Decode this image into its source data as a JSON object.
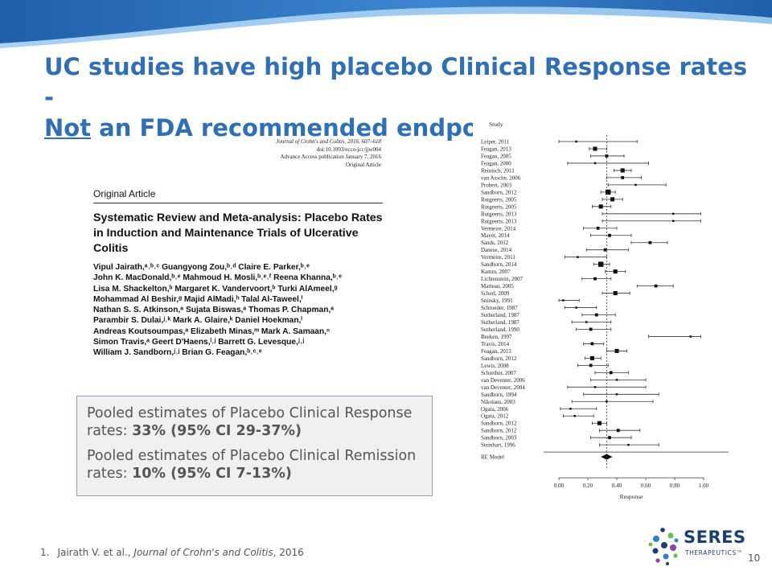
{
  "slide": {
    "title_line1": "UC studies have high placebo Clinical Response rates -",
    "title_not": "Not",
    "title_rest": " an FDA recommended endpoint",
    "page_number": "10",
    "colors": {
      "title": "#2f6fb5",
      "banner_dark": "#1f5fa8",
      "banner_light": "#4f9ee0",
      "logo": "#1d3f6f"
    }
  },
  "article": {
    "journal_line": "Journal of Crohn's and Colitis, 2016, 607–618",
    "doi": "doi:10.1093/ecco-jcc/jjw004",
    "access": "Advance Access publication January 7, 2016",
    "type_label": "Original Article",
    "section_label": "Original Article",
    "title": "Systematic Review and Meta-analysis: Placebo Rates in Induction and Maintenance Trials of Ulcerative Colitis",
    "authors": [
      "Vipul Jairath,ᵃ˒ᵇ˒ᶜ Guangyong Zou,ᵇ˒ᵈ Claire E. Parker,ᵇ˒ᵉ",
      "John K. MacDonald,ᵇ˒ᵉ Mahmoud H. Mosli,ᵇ˒ᵉ˒ᶠ Reena Khanna,ᵇ˒ᵉ",
      "Lisa M. Shackelton,ᵇ Margaret K. Vandervoort,ᵇ Turki AlAmeel,ᵍ",
      "Mohammad Al Beshir,ᵍ Majid AlMadi,ʰ Talal Al-Taweel,ⁱ",
      "Nathan S. S. Atkinson,ᵃ Sujata Biswas,ᵃ Thomas P. Chapman,ᵃ",
      "Parambir S. Dulai,ʲ˒ᵏ Mark A. Glaire,ᵏ Daniel Hoekman,ˡ",
      "Andreas Koutsoumpas,ᵃ Elizabeth Minas,ᵐ Mark A. Samaan,ⁿ",
      "Simon Travis,ᵃ Geert D'Haens,ˡ˒ʲ Barrett G. Levesque,ʲ˒ʲ",
      "William J. Sandborn,ʲ˒ʲ Brian G. Feagan,ᵇ˒ᶜ˒ᵉ"
    ]
  },
  "callout": {
    "response_prefix": "Pooled estimates of Placebo Clinical Response rates: ",
    "response_value": "33% (95% CI 29-37%)",
    "remission_prefix": "Pooled estimates of Placebo Clinical Remission rates: ",
    "remission_value": "10% (95% CI 7-13%)"
  },
  "chart_data": {
    "type": "forest",
    "column_header": "Study",
    "xlabel": "Response",
    "xlim": [
      0,
      1
    ],
    "ticks": [
      "0.00",
      "0.20",
      "0.40",
      "0.60",
      "0.80",
      "1.00"
    ],
    "dashed_reference": 0.33,
    "studies": [
      {
        "label": "Leiper, 2011",
        "est": 0.12,
        "lo": 0.0,
        "hi": 0.54,
        "w": 1
      },
      {
        "label": "Feagan, 2013",
        "est": 0.25,
        "lo": 0.21,
        "hi": 0.33,
        "w": 3
      },
      {
        "label": "Feagan, 2005",
        "est": 0.33,
        "lo": 0.22,
        "hi": 0.45,
        "w": 2
      },
      {
        "label": "Feagan, 2000",
        "est": 0.25,
        "lo": 0.06,
        "hi": 0.62,
        "w": 1
      },
      {
        "label": "Reinisch, 2011",
        "est": 0.44,
        "lo": 0.38,
        "hi": 0.5,
        "w": 3
      },
      {
        "label": "van Assche, 2006",
        "est": 0.44,
        "lo": 0.33,
        "hi": 0.57,
        "w": 2
      },
      {
        "label": "Probert, 2003",
        "est": 0.53,
        "lo": 0.34,
        "hi": 0.74,
        "w": 1
      },
      {
        "label": "Sandborn, 2012",
        "est": 0.34,
        "lo": 0.29,
        "hi": 0.39,
        "w": 4
      },
      {
        "label": "Rutgeerts, 2005",
        "est": 0.37,
        "lo": 0.3,
        "hi": 0.44,
        "w": 3
      },
      {
        "label": "Rutgeerts, 2005",
        "est": 0.29,
        "lo": 0.23,
        "hi": 0.36,
        "w": 3
      },
      {
        "label": "Rutgeerts, 2013",
        "est": 0.79,
        "lo": 0.3,
        "hi": 0.98,
        "w": 1
      },
      {
        "label": "Rutgeerts, 2013",
        "est": 0.79,
        "lo": 0.3,
        "hi": 0.98,
        "w": 1
      },
      {
        "label": "Vermeire, 2014",
        "est": 0.27,
        "lo": 0.17,
        "hi": 0.4,
        "w": 2
      },
      {
        "label": "Mayer, 2014",
        "est": 0.35,
        "lo": 0.22,
        "hi": 0.5,
        "w": 2
      },
      {
        "label": "Sands, 2012",
        "est": 0.63,
        "lo": 0.5,
        "hi": 0.75,
        "w": 2
      },
      {
        "label": "Danese, 2014",
        "est": 0.32,
        "lo": 0.19,
        "hi": 0.48,
        "w": 2
      },
      {
        "label": "Vermeire, 2011",
        "est": 0.13,
        "lo": 0.04,
        "hi": 0.33,
        "w": 1
      },
      {
        "label": "Sandborn, 2014",
        "est": 0.29,
        "lo": 0.24,
        "hi": 0.35,
        "w": 4
      },
      {
        "label": "Kamm, 2007",
        "est": 0.39,
        "lo": 0.32,
        "hi": 0.46,
        "w": 3
      },
      {
        "label": "Lichtenstein, 2007",
        "est": 0.25,
        "lo": 0.16,
        "hi": 0.36,
        "w": 2
      },
      {
        "label": "Marteau, 2005",
        "est": 0.67,
        "lo": 0.54,
        "hi": 0.79,
        "w": 2
      },
      {
        "label": "Scherl, 2009",
        "est": 0.39,
        "lo": 0.3,
        "hi": 0.49,
        "w": 3
      },
      {
        "label": "Sninsky, 1991",
        "est": 0.03,
        "lo": 0.0,
        "hi": 0.14,
        "w": 1
      },
      {
        "label": "Schroeder, 1987",
        "est": 0.12,
        "lo": 0.04,
        "hi": 0.26,
        "w": 1
      },
      {
        "label": "Sutherland, 1987",
        "est": 0.26,
        "lo": 0.16,
        "hi": 0.39,
        "w": 2
      },
      {
        "label": "Sutherland, 1987",
        "est": 0.19,
        "lo": 0.09,
        "hi": 0.36,
        "w": 1
      },
      {
        "label": "Sutherland, 1990",
        "est": 0.22,
        "lo": 0.12,
        "hi": 0.36,
        "w": 2
      },
      {
        "label": "Beeken, 1997",
        "est": 0.91,
        "lo": 0.62,
        "hi": 0.98,
        "w": 1
      },
      {
        "label": "Travis, 2014",
        "est": 0.23,
        "lo": 0.17,
        "hi": 0.31,
        "w": 2
      },
      {
        "label": "Feagan, 2013",
        "est": 0.4,
        "lo": 0.33,
        "hi": 0.47,
        "w": 3
      },
      {
        "label": "Sandborn, 2012",
        "est": 0.23,
        "lo": 0.18,
        "hi": 0.29,
        "w": 3
      },
      {
        "label": "Lewis, 2008",
        "est": 0.22,
        "lo": 0.13,
        "hi": 0.34,
        "w": 2
      },
      {
        "label": "Schreiber, 2007",
        "est": 0.36,
        "lo": 0.25,
        "hi": 0.48,
        "w": 2
      },
      {
        "label": "van Deventer, 2006",
        "est": 0.4,
        "lo": 0.22,
        "hi": 0.6,
        "w": 1
      },
      {
        "label": "van Deventer, 2004",
        "est": 0.25,
        "lo": 0.06,
        "hi": 0.6,
        "w": 1
      },
      {
        "label": "Sandborn, 1994",
        "est": 0.4,
        "lo": 0.17,
        "hi": 0.69,
        "w": 1
      },
      {
        "label": "Nikolaus, 2003",
        "est": 0.33,
        "lo": 0.09,
        "hi": 0.65,
        "w": 1
      },
      {
        "label": "Ogata, 2006",
        "est": 0.08,
        "lo": 0.01,
        "hi": 0.26,
        "w": 1
      },
      {
        "label": "Ogata, 2012",
        "est": 0.11,
        "lo": 0.03,
        "hi": 0.24,
        "w": 1
      },
      {
        "label": "Sandborn, 2012",
        "est": 0.28,
        "lo": 0.23,
        "hi": 0.33,
        "w": 3
      },
      {
        "label": "Sandborn, 2012",
        "est": 0.41,
        "lo": 0.28,
        "hi": 0.56,
        "w": 2
      },
      {
        "label": "Sandborn, 2003",
        "est": 0.35,
        "lo": 0.22,
        "hi": 0.5,
        "w": 2
      },
      {
        "label": "Steinhart, 1996",
        "est": 0.48,
        "lo": 0.28,
        "hi": 0.69,
        "w": 1
      }
    ],
    "summary": {
      "label": "RE Model",
      "est": 0.33,
      "lo": 0.29,
      "hi": 0.37
    }
  },
  "footnote": {
    "number": "1.",
    "authors": "Jairath V. et al., ",
    "journal": "Journal of Crohn's and Colitis",
    "year": ", 2016"
  },
  "logo": {
    "name": "SERES",
    "subtitle": "THERAPEUTICS™"
  }
}
